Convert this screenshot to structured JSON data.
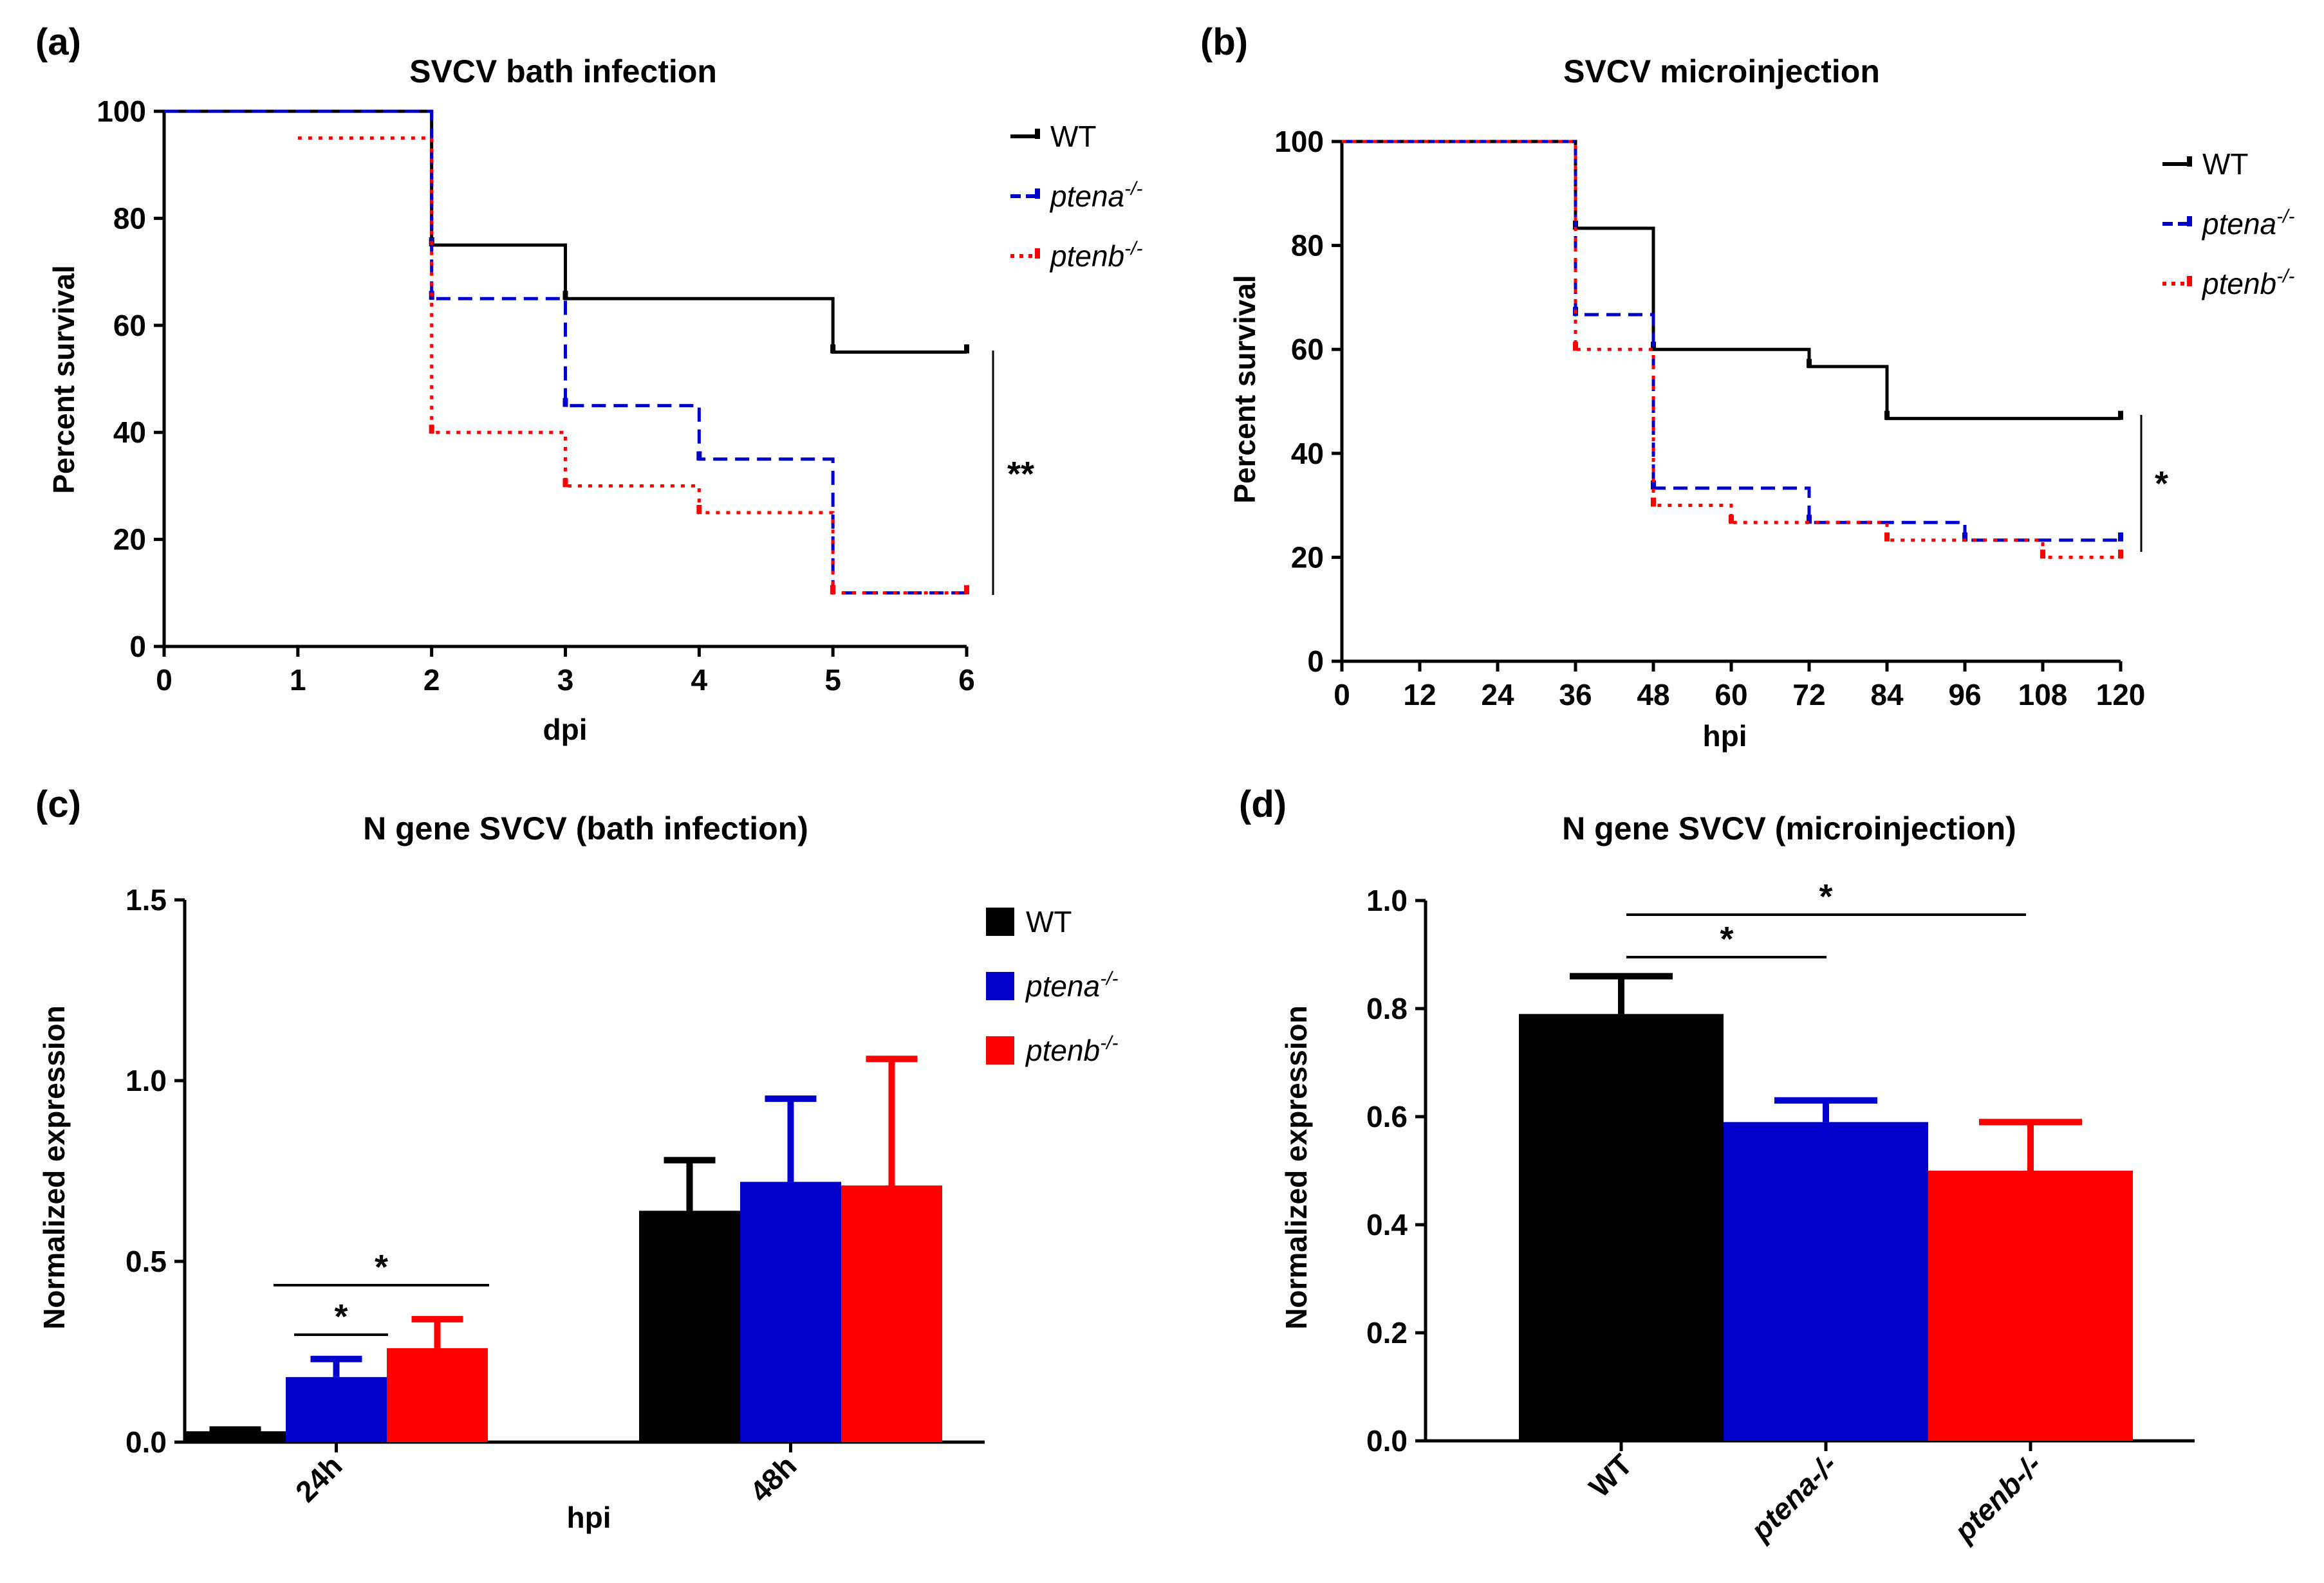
{
  "legend_entries": {
    "wt": "WT",
    "ptena": "ptena",
    "ptenb": "ptenb",
    "sup": "-/-"
  },
  "colors": {
    "wt": "#000000",
    "ptena": "#0000cc",
    "ptenb": "#ff0000"
  },
  "chart_data": [
    {
      "panel": "(a)",
      "type": "line",
      "step": true,
      "title": "SVCV bath infection",
      "xlabel": "dpi",
      "ylabel": "Percent survival",
      "xlim": [
        0,
        6
      ],
      "ylim": [
        0,
        100
      ],
      "xticks": [
        0,
        1,
        2,
        3,
        4,
        5,
        6
      ],
      "yticks": [
        0,
        20,
        40,
        60,
        80,
        100
      ],
      "legend": "right",
      "series": [
        {
          "name": "WT",
          "x": [
            0,
            2,
            3,
            5,
            6
          ],
          "y": [
            100,
            75,
            65,
            55,
            55
          ]
        },
        {
          "name": "ptena-/-",
          "x": [
            0,
            2,
            3,
            4,
            5,
            6
          ],
          "y": [
            100,
            65,
            45,
            35,
            10,
            10
          ]
        },
        {
          "name": "ptenb-/-",
          "x": [
            1,
            2,
            3,
            4,
            5,
            6
          ],
          "y": [
            95,
            40,
            30,
            25,
            10,
            10
          ]
        }
      ],
      "significance": "**"
    },
    {
      "panel": "(b)",
      "type": "line",
      "step": true,
      "title": "SVCV microinjection",
      "xlabel": "hpi",
      "ylabel": "Percent survival",
      "xlim": [
        0,
        120
      ],
      "ylim": [
        0,
        100
      ],
      "xticks": [
        0,
        12,
        24,
        36,
        48,
        60,
        72,
        84,
        96,
        108,
        120
      ],
      "yticks": [
        0,
        20,
        40,
        60,
        80,
        100
      ],
      "legend": "right",
      "series": [
        {
          "name": "WT",
          "x": [
            0,
            36,
            48,
            72,
            84,
            120
          ],
          "y": [
            100,
            83.3,
            60,
            56.7,
            46.7,
            46.7
          ]
        },
        {
          "name": "ptena-/-",
          "x": [
            0,
            36,
            48,
            72,
            96,
            120
          ],
          "y": [
            100,
            66.7,
            33.3,
            26.7,
            23.3,
            23.3
          ]
        },
        {
          "name": "ptenb-/-",
          "x": [
            0,
            36,
            48,
            60,
            84,
            108,
            120
          ],
          "y": [
            100,
            60,
            30,
            26.7,
            23.3,
            20,
            20
          ]
        }
      ],
      "significance": "*"
    },
    {
      "panel": "(c)",
      "type": "bar",
      "title": "N gene SVCV (bath infection)",
      "xlabel": "hpi",
      "ylabel": "Normalized expression",
      "ylim": [
        0,
        1.5
      ],
      "yticks": [
        "0.0",
        "0.5",
        "1.0",
        "1.5"
      ],
      "categories": [
        "24h",
        "48h"
      ],
      "legend": "top-right",
      "series": [
        {
          "name": "WT",
          "values": [
            0.03,
            0.64
          ],
          "errors": [
            0.005,
            0.14
          ]
        },
        {
          "name": "ptena-/-",
          "values": [
            0.18,
            0.72
          ],
          "errors": [
            0.05,
            0.23
          ]
        },
        {
          "name": "ptenb-/-",
          "values": [
            0.26,
            0.71
          ],
          "errors": [
            0.08,
            0.35
          ]
        }
      ],
      "significance": [
        {
          "text": "*",
          "from": "WT",
          "to": "ptena-/-",
          "category": "24h"
        },
        {
          "text": "*",
          "from": "WT",
          "to": "ptenb-/-",
          "category": "24h"
        }
      ]
    },
    {
      "panel": "(d)",
      "type": "bar",
      "title": "N gene SVCV (microinjection)",
      "xlabel": "",
      "ylabel": "Normalized expression",
      "ylim": [
        0,
        1.0
      ],
      "yticks": [
        "0.0",
        "0.2",
        "0.4",
        "0.6",
        "0.8",
        "1.0"
      ],
      "categories": [
        "WT",
        "ptena-/-",
        "ptenb-/-"
      ],
      "values": [
        0.79,
        0.59,
        0.5
      ],
      "errors": [
        0.07,
        0.04,
        0.09
      ],
      "significance": [
        {
          "text": "*",
          "from": "WT",
          "to": "ptena-/-"
        },
        {
          "text": "*",
          "from": "WT",
          "to": "ptenb-/-"
        }
      ]
    }
  ]
}
